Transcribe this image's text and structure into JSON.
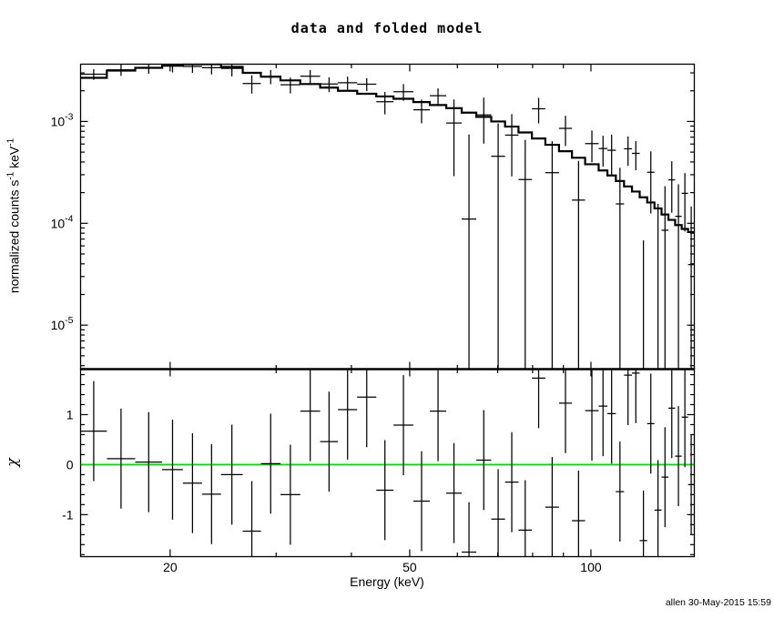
{
  "window": {
    "background": "#ffffff",
    "foreground": "#000000"
  },
  "meta": {
    "timestamp": "allen 30-May-2015 15:59"
  },
  "chart_data": [
    {
      "panel": "spectrum",
      "type": "line",
      "title": "data and folded model",
      "ylabel": "normalized counts s^{-1} keV^{-1}",
      "xscale": "log",
      "yscale": "log",
      "xlim": [
        14.2,
        148.5
      ],
      "ylim": [
        3.7e-06,
        0.00365
      ],
      "x_ticks": {
        "major": [
          20,
          50,
          100
        ],
        "labels": [
          "20",
          "50",
          "100"
        ],
        "minor": [
          30,
          40,
          60,
          70,
          80,
          90
        ]
      },
      "y_ticks": {
        "major": [
          0.001,
          0.0001,
          1e-05
        ],
        "labels": [
          "10^-3",
          "10^-4",
          "10^-5"
        ],
        "minor": [
          4e-06,
          5e-06,
          6e-06,
          7e-06,
          8e-06,
          9e-06,
          2e-05,
          3e-05,
          4e-05,
          5e-05,
          6e-05,
          7e-05,
          8e-05,
          9e-05,
          0.0002,
          0.0003,
          0.0004,
          0.0005,
          0.0006,
          0.0007,
          0.0008,
          0.0009,
          0.002,
          0.003
        ]
      },
      "bin_edges_keV": [
        14.2,
        15.7,
        17.5,
        19.4,
        21.0,
        22.6,
        24.3,
        26.4,
        28.3,
        30.5,
        32.9,
        35.5,
        38.0,
        40.9,
        44.0,
        47.0,
        50.7,
        54.0,
        57.5,
        61.0,
        64.5,
        68.3,
        72.0,
        75.8,
        79.8,
        84.0,
        88.5,
        93.0,
        97.8,
        103.0,
        106.5,
        110.0,
        113.5,
        117.0,
        120.5,
        124.0,
        127.5,
        131.0,
        134.5,
        138.0,
        141.5,
        145.0,
        148.5
      ],
      "series": [
        {
          "name": "folded model",
          "style": "histogram",
          "color": "#000000",
          "values": [
            0.00268,
            0.00316,
            0.00336,
            0.00354,
            0.00365,
            0.00365,
            0.00343,
            0.003,
            0.00275,
            0.00253,
            0.00233,
            0.00215,
            0.002,
            0.00187,
            0.00176,
            0.00167,
            0.00155,
            0.00145,
            0.00135,
            0.00122,
            0.00111,
            0.001,
            0.00089,
            0.00078,
            0.00068,
            0.00059,
            0.00051,
            0.00044,
            0.00038,
            0.00033,
            0.000295,
            0.00026,
            0.00023,
            0.000205,
            0.00018,
            0.00016,
            0.00014,
            0.000122,
            0.000108,
            9.6e-05,
            8.8e-05,
            8.2e-05
          ]
        },
        {
          "name": "data",
          "style": "cross",
          "color": "#000000",
          "values": [
            0.00291,
            0.00321,
            0.00338,
            0.00349,
            0.00347,
            0.00337,
            0.00332,
            0.00236,
            0.00276,
            0.00229,
            0.00278,
            0.00233,
            0.0024,
            0.00232,
            0.00156,
            0.00196,
            0.0013,
            0.00179,
            0.000965,
            0.00011,
            0.00116,
            0.000455,
            0.000734,
            0.000269,
            0.00133,
            0.000314,
            0.000855,
            0.000169,
            0.000606,
            0.000542,
            0.000521,
            0.000155,
            0.000539,
            0.000486,
            -0.000148,
            0.000317,
            -1.3e-05,
            8.55e-05,
            0.000267,
            0.000117,
            0.000197,
            3.93e-05
          ],
          "errors": [
            0.000348,
            0.000411,
            0.000437,
            0.00046,
            0.000475,
            0.000475,
            0.000549,
            0.00048,
            0.00044,
            0.000405,
            0.000419,
            0.000387,
            0.00036,
            0.000337,
            0.000387,
            0.000367,
            0.000341,
            0.000319,
            0.000675,
            0.000634,
            0.000555,
            0.0005,
            0.000445,
            0.00039,
            0.000374,
            0.000325,
            0.000281,
            0.000242,
            0.000209,
            0.000182,
            0.000221,
            0.000195,
            0.000173,
            0.000154,
            0.000216,
            0.000192,
            0.000168,
            0.000146,
            0.00014,
            0.000125,
            0.000114,
            0.000107
          ]
        }
      ]
    },
    {
      "panel": "residuals",
      "type": "scatter",
      "ylabel": "χ",
      "xlabel": "Energy (keV)",
      "xscale": "log",
      "yscale": "linear",
      "ylim": [
        -1.84,
        1.91
      ],
      "x_ticks": {
        "major": [
          20,
          50,
          100
        ],
        "labels": [
          "20",
          "50",
          "100"
        ],
        "minor": [
          30,
          40,
          60,
          70,
          80,
          90
        ]
      },
      "y_ticks": {
        "major": [
          1,
          0,
          -1
        ],
        "labels": [
          "1",
          "0",
          "-1"
        ],
        "minor": [
          -1.8,
          -1.6,
          -1.4,
          -1.2,
          -0.8,
          -0.6,
          -0.4,
          -0.2,
          0.2,
          0.4,
          0.6,
          0.8,
          1.2,
          1.4,
          1.6,
          1.8
        ]
      },
      "zero_line_color": "#00dd00",
      "values": [
        0.67,
        0.12,
        0.05,
        -0.1,
        -0.37,
        -0.59,
        -0.2,
        -1.33,
        0.02,
        -0.6,
        1.07,
        0.46,
        1.1,
        1.35,
        -0.51,
        0.79,
        -0.73,
        1.07,
        -0.57,
        -1.75,
        0.09,
        -1.09,
        -0.35,
        -1.31,
        1.73,
        -0.85,
        1.23,
        -1.12,
        1.08,
        1.17,
        1.02,
        -0.54,
        1.79,
        1.83,
        -1.52,
        0.82,
        -0.91,
        -0.25,
        1.13,
        0.17,
        0.95,
        -0.4
      ],
      "error": 1
    }
  ]
}
